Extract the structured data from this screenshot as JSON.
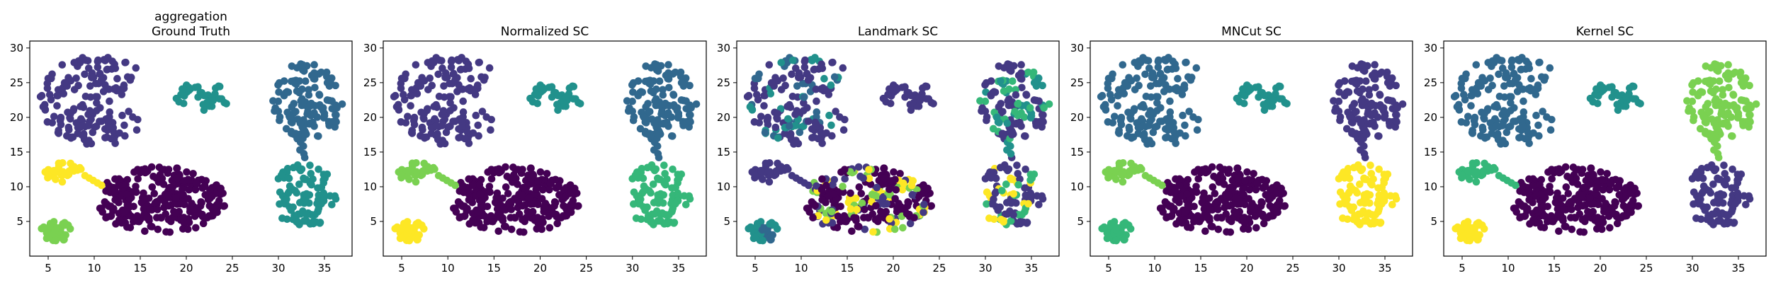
{
  "chart_data": [
    {
      "type": "scatter",
      "title": "aggregation\nGround Truth",
      "xlim": [
        3,
        38
      ],
      "ylim": [
        0,
        31
      ],
      "xticks": [
        5,
        10,
        15,
        20,
        25,
        30,
        35
      ],
      "yticks": [
        5,
        10,
        15,
        20,
        25,
        30
      ],
      "grid": false,
      "clusters": [
        {
          "id": "A",
          "color": "#443983",
          "center": [
            10.0,
            22.0
          ],
          "n": 170
        },
        {
          "id": "B",
          "color": "#21918c",
          "center": [
            22.0,
            23.0
          ],
          "n": 34
        },
        {
          "id": "C",
          "color": "#31688e",
          "center": [
            33.0,
            21.0
          ],
          "n": 130
        },
        {
          "id": "D",
          "color": "#fde725",
          "center": [
            6.5,
            12.0
          ],
          "n": 34
        },
        {
          "id": "E",
          "color": "#440154",
          "center": [
            17.0,
            8.0
          ],
          "n": 275
        },
        {
          "id": "F",
          "color": "#21918c",
          "center": [
            33.0,
            8.5
          ],
          "n": 100
        },
        {
          "id": "G",
          "color": "#7ad151",
          "center": [
            6.0,
            3.5
          ],
          "n": 45
        }
      ]
    },
    {
      "type": "scatter",
      "title": "Normalized SC",
      "xlim": [
        3,
        38
      ],
      "ylim": [
        0,
        31
      ],
      "xticks": [
        5,
        10,
        15,
        20,
        25,
        30,
        35
      ],
      "yticks": [
        5,
        10,
        15,
        20,
        25,
        30
      ],
      "grid": false,
      "clusters": [
        {
          "id": "A",
          "color": "#443983"
        },
        {
          "id": "B",
          "color": "#21918c"
        },
        {
          "id": "C",
          "color": "#31688e"
        },
        {
          "id": "D",
          "color": "#7ad151"
        },
        {
          "id": "E",
          "color": "#440154"
        },
        {
          "id": "F",
          "color": "#35b779"
        },
        {
          "id": "G",
          "color": "#fde725"
        }
      ]
    },
    {
      "type": "scatter",
      "title": "Landmark SC",
      "xlim": [
        3,
        38
      ],
      "ylim": [
        0,
        31
      ],
      "xticks": [
        5,
        10,
        15,
        20,
        25,
        30,
        35
      ],
      "yticks": [
        5,
        10,
        15,
        20,
        25,
        30
      ],
      "grid": false,
      "clusters": [
        {
          "id": "A",
          "color": "#443983",
          "mix": [
            "#31688e",
            "#21918c"
          ]
        },
        {
          "id": "B",
          "color": "#443983"
        },
        {
          "id": "C",
          "color": "#443983",
          "mix": [
            "#35b779",
            "#21918c"
          ]
        },
        {
          "id": "D",
          "color": "#443983"
        },
        {
          "id": "E",
          "color": "#440154",
          "mix": [
            "#443983",
            "#7ad151",
            "#fde725"
          ]
        },
        {
          "id": "F",
          "color": "#443983",
          "mix": [
            "#35b779",
            "#fde725"
          ]
        },
        {
          "id": "G",
          "color": "#21918c",
          "mix": [
            "#31688e"
          ]
        }
      ]
    },
    {
      "type": "scatter",
      "title": "MNCut SC",
      "xlim": [
        3,
        38
      ],
      "ylim": [
        0,
        31
      ],
      "xticks": [
        5,
        10,
        15,
        20,
        25,
        30,
        35
      ],
      "yticks": [
        5,
        10,
        15,
        20,
        25,
        30
      ],
      "grid": false,
      "clusters": [
        {
          "id": "A",
          "color": "#31688e"
        },
        {
          "id": "B",
          "color": "#21918c"
        },
        {
          "id": "C",
          "color": "#443983"
        },
        {
          "id": "D",
          "color": "#7ad151"
        },
        {
          "id": "E",
          "color": "#440154"
        },
        {
          "id": "F",
          "color": "#fde725"
        },
        {
          "id": "G",
          "color": "#35b779"
        }
      ]
    },
    {
      "type": "scatter",
      "title": "Kernel SC",
      "xlim": [
        3,
        38
      ],
      "ylim": [
        0,
        31
      ],
      "xticks": [
        5,
        10,
        15,
        20,
        25,
        30,
        35
      ],
      "yticks": [
        5,
        10,
        15,
        20,
        25,
        30
      ],
      "grid": false,
      "clusters": [
        {
          "id": "A",
          "color": "#31688e"
        },
        {
          "id": "B",
          "color": "#21918c"
        },
        {
          "id": "C",
          "color": "#7ad151"
        },
        {
          "id": "D",
          "color": "#35b779"
        },
        {
          "id": "E",
          "color": "#440154"
        },
        {
          "id": "F",
          "color": "#443983"
        },
        {
          "id": "G",
          "color": "#fde725"
        }
      ]
    }
  ]
}
